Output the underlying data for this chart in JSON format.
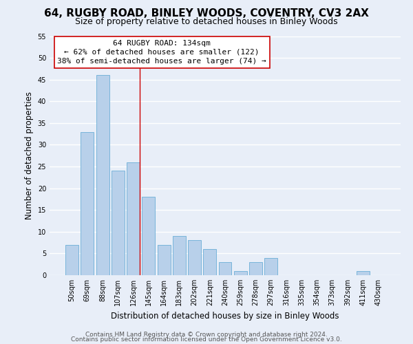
{
  "title": "64, RUGBY ROAD, BINLEY WOODS, COVENTRY, CV3 2AX",
  "subtitle": "Size of property relative to detached houses in Binley Woods",
  "xlabel": "Distribution of detached houses by size in Binley Woods",
  "ylabel": "Number of detached properties",
  "bar_labels": [
    "50sqm",
    "69sqm",
    "88sqm",
    "107sqm",
    "126sqm",
    "145sqm",
    "164sqm",
    "183sqm",
    "202sqm",
    "221sqm",
    "240sqm",
    "259sqm",
    "278sqm",
    "297sqm",
    "316sqm",
    "335sqm",
    "354sqm",
    "373sqm",
    "392sqm",
    "411sqm",
    "430sqm"
  ],
  "bar_values": [
    7,
    33,
    46,
    24,
    26,
    18,
    7,
    9,
    8,
    6,
    3,
    1,
    3,
    4,
    0,
    0,
    0,
    0,
    0,
    1,
    0
  ],
  "bar_color": "#b8d0ea",
  "bar_edge_color": "#6aaed6",
  "ylim": [
    0,
    55
  ],
  "yticks": [
    0,
    5,
    10,
    15,
    20,
    25,
    30,
    35,
    40,
    45,
    50,
    55
  ],
  "property_label": "64 RUGBY ROAD: 134sqm",
  "annotation_line1": "← 62% of detached houses are smaller (122)",
  "annotation_line2": "38% of semi-detached houses are larger (74) →",
  "footer_line1": "Contains HM Land Registry data © Crown copyright and database right 2024.",
  "footer_line2": "Contains public sector information licensed under the Open Government Licence v3.0.",
  "bg_color": "#e8eef8",
  "plot_bg_color": "#e8eef8",
  "grid_color": "#ffffff",
  "title_fontsize": 11,
  "subtitle_fontsize": 9,
  "xlabel_fontsize": 8.5,
  "ylabel_fontsize": 8.5,
  "tick_fontsize": 7,
  "footer_fontsize": 6.5,
  "ann_fontsize": 8
}
